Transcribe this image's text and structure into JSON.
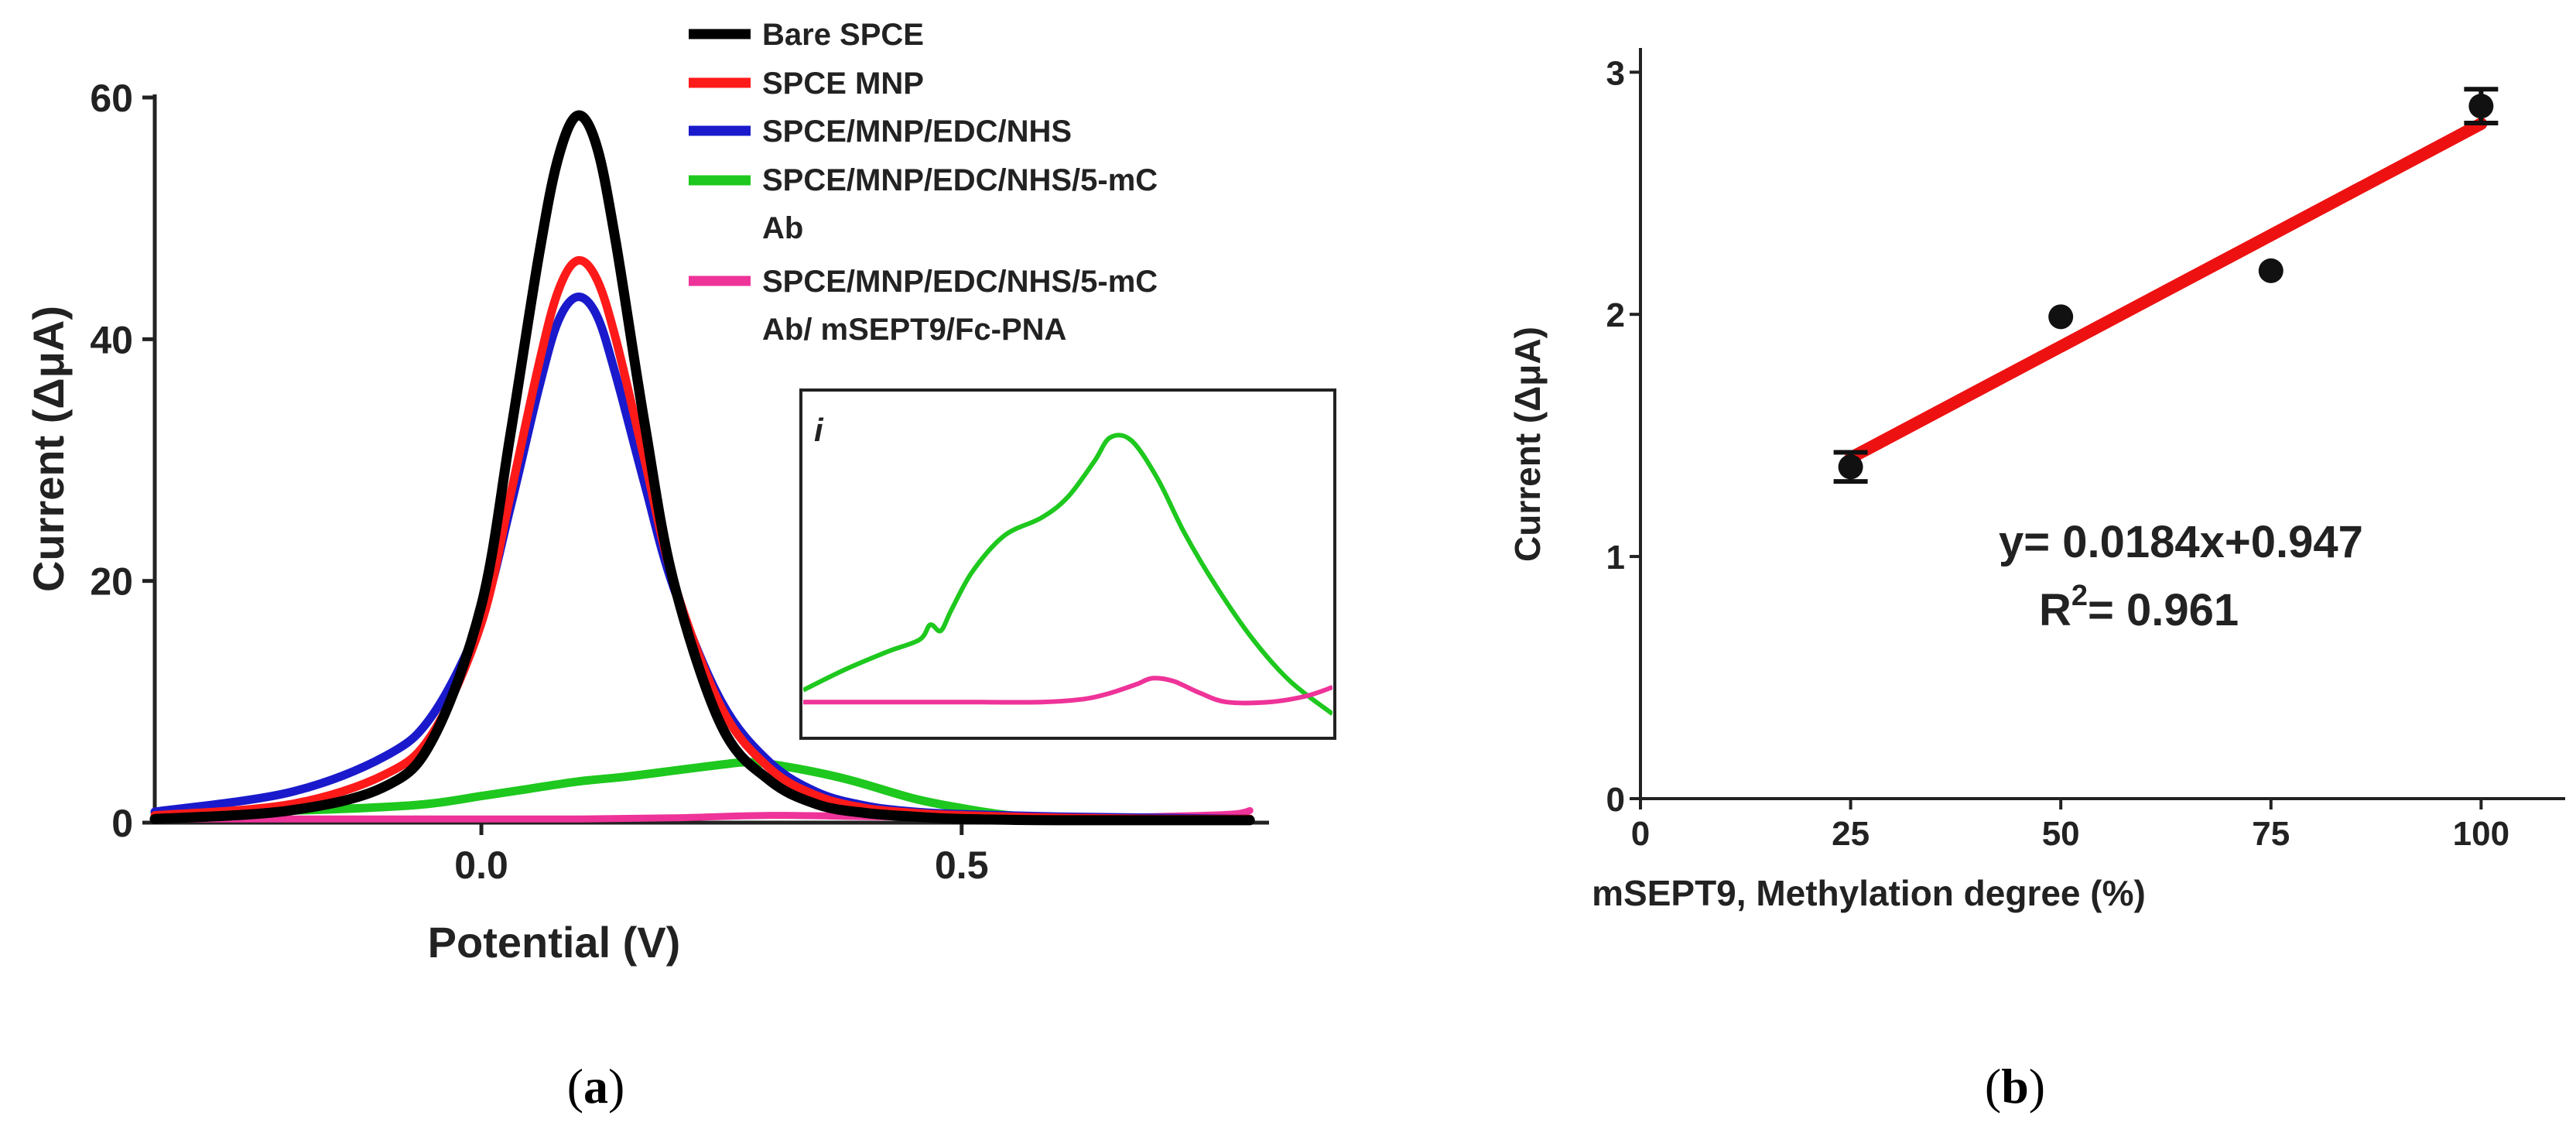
{
  "chart_data": [
    {
      "panel": "a",
      "type": "line",
      "caption": "(a)",
      "xlabel": "Potential (V)",
      "ylabel": "Current (ΔμA)",
      "xlim": [
        -0.34,
        0.82
      ],
      "ylim": [
        0,
        60
      ],
      "xticks": [
        0.0,
        0.5
      ],
      "xtick_labels": [
        "0.0",
        "0.5"
      ],
      "yticks": [
        0,
        20,
        40,
        60
      ],
      "ytick_labels": [
        "0",
        "20",
        "40",
        "60"
      ],
      "legend_position": "top-center",
      "series": [
        {
          "name": "Bare SPCE",
          "color": "#000000",
          "x": [
            -0.34,
            -0.2,
            -0.1,
            -0.05,
            0.0,
            0.03,
            0.06,
            0.08,
            0.1,
            0.12,
            0.14,
            0.17,
            0.2,
            0.25,
            0.3,
            0.35,
            0.4,
            0.45,
            0.5,
            0.6,
            0.7,
            0.8
          ],
          "y": [
            0.3,
            1.0,
            3.0,
            7.0,
            18.0,
            32.0,
            47.0,
            55.0,
            58.5,
            56.0,
            48.0,
            33.0,
            20.0,
            8.0,
            3.5,
            1.5,
            0.8,
            0.5,
            0.3,
            0.2,
            0.2,
            0.2
          ]
        },
        {
          "name": "SPCE MNP",
          "color": "#ff1a1a",
          "x": [
            -0.34,
            -0.2,
            -0.1,
            -0.05,
            0.0,
            0.03,
            0.06,
            0.08,
            0.1,
            0.12,
            0.14,
            0.17,
            0.2,
            0.25,
            0.3,
            0.35,
            0.4,
            0.45,
            0.5,
            0.6,
            0.7,
            0.8
          ],
          "y": [
            0.6,
            1.5,
            4.0,
            7.5,
            16.5,
            27.0,
            38.0,
            44.0,
            46.5,
            45.0,
            40.0,
            30.0,
            20.0,
            9.5,
            4.5,
            2.2,
            1.2,
            0.8,
            0.6,
            0.4,
            0.3,
            0.3
          ]
        },
        {
          "name": "SPCE/MNP/EDC/NHS",
          "color": "#1a1acc",
          "x": [
            -0.34,
            -0.2,
            -0.1,
            -0.05,
            0.0,
            0.03,
            0.06,
            0.08,
            0.1,
            0.12,
            0.14,
            0.17,
            0.2,
            0.25,
            0.3,
            0.35,
            0.4,
            0.45,
            0.5,
            0.6,
            0.7,
            0.8
          ],
          "y": [
            0.9,
            2.5,
            5.5,
            9.0,
            17.0,
            26.0,
            36.0,
            41.5,
            43.5,
            42.0,
            37.0,
            28.0,
            19.5,
            10.0,
            5.0,
            2.5,
            1.4,
            0.9,
            0.7,
            0.5,
            0.4,
            0.3
          ]
        },
        {
          "name": "SPCE/MNP/EDC/NHS/5-mC Ab",
          "color": "#1ec81e",
          "x": [
            -0.34,
            -0.2,
            -0.1,
            -0.05,
            0.0,
            0.05,
            0.1,
            0.15,
            0.2,
            0.25,
            0.28,
            0.32,
            0.38,
            0.45,
            0.5,
            0.55,
            0.6,
            0.7,
            0.8
          ],
          "y": [
            0.8,
            1.0,
            1.3,
            1.6,
            2.2,
            2.8,
            3.4,
            3.8,
            4.3,
            4.8,
            5.0,
            4.6,
            3.6,
            2.0,
            1.2,
            0.6,
            0.4,
            0.3,
            0.3
          ]
        },
        {
          "name": "SPCE/MNP/EDC/NHS/5-mC Ab/ mSEPT9/Fc-PNA",
          "color": "#ee3399",
          "x": [
            -0.34,
            -0.2,
            -0.1,
            0.0,
            0.1,
            0.2,
            0.3,
            0.4,
            0.5,
            0.6,
            0.7,
            0.78,
            0.8
          ],
          "y": [
            0.3,
            0.3,
            0.3,
            0.3,
            0.3,
            0.4,
            0.6,
            0.5,
            0.4,
            0.4,
            0.5,
            0.7,
            1.0
          ]
        }
      ],
      "inset": {
        "label": "i",
        "series": [
          {
            "name": "SPCE/MNP/EDC/NHS/5-mC Ab",
            "color": "#1ec81e",
            "x": [
              0.0,
              0.08,
              0.16,
              0.22,
              0.24,
              0.26,
              0.28,
              0.32,
              0.38,
              0.45,
              0.5,
              0.55,
              0.58,
              0.62,
              0.67,
              0.72,
              0.78,
              0.85,
              0.92,
              1.0
            ],
            "y": [
              0.05,
              0.12,
              0.18,
              0.22,
              0.27,
              0.25,
              0.32,
              0.45,
              0.57,
              0.63,
              0.7,
              0.82,
              0.9,
              0.89,
              0.76,
              0.58,
              0.4,
              0.22,
              0.08,
              -0.03
            ]
          },
          {
            "name": "SPCE/MNP/EDC/NHS/5-mC Ab/ mSEPT9/Fc-PNA",
            "color": "#ee3399",
            "x": [
              0.0,
              0.15,
              0.3,
              0.45,
              0.53,
              0.58,
              0.63,
              0.66,
              0.7,
              0.75,
              0.8,
              0.88,
              0.95,
              1.0
            ],
            "y": [
              0.01,
              0.01,
              0.01,
              0.01,
              0.02,
              0.04,
              0.07,
              0.09,
              0.08,
              0.04,
              0.01,
              0.01,
              0.03,
              0.06
            ]
          }
        ]
      }
    },
    {
      "panel": "b",
      "type": "scatter",
      "caption": "(b)",
      "xlabel": "mSEPT9, Methylation degree (%)",
      "ylabel": "Current (ΔμA)",
      "xlim": [
        0,
        110
      ],
      "ylim": [
        0,
        3.1
      ],
      "xticks": [
        0,
        25,
        50,
        75,
        100
      ],
      "xtick_labels": [
        "0",
        "25",
        "50",
        "75",
        "100"
      ],
      "yticks": [
        0,
        1,
        2,
        3
      ],
      "ytick_labels": [
        "0",
        "1",
        "2",
        "3"
      ],
      "points": [
        {
          "x": 25,
          "y": 1.37,
          "err": 0.06
        },
        {
          "x": 50,
          "y": 1.99,
          "err": 0
        },
        {
          "x": 75,
          "y": 2.18,
          "err": 0
        },
        {
          "x": 100,
          "y": 2.86,
          "err": 0.07
        }
      ],
      "fit": {
        "slope": 0.0184,
        "intercept": 0.947,
        "x_range": [
          25,
          100
        ],
        "color": "#ee1111",
        "equation": "y= 0.0184x+0.947",
        "r2_prefix": "R",
        "r2_sup": "2",
        "r2_value": "= 0.961"
      }
    }
  ]
}
